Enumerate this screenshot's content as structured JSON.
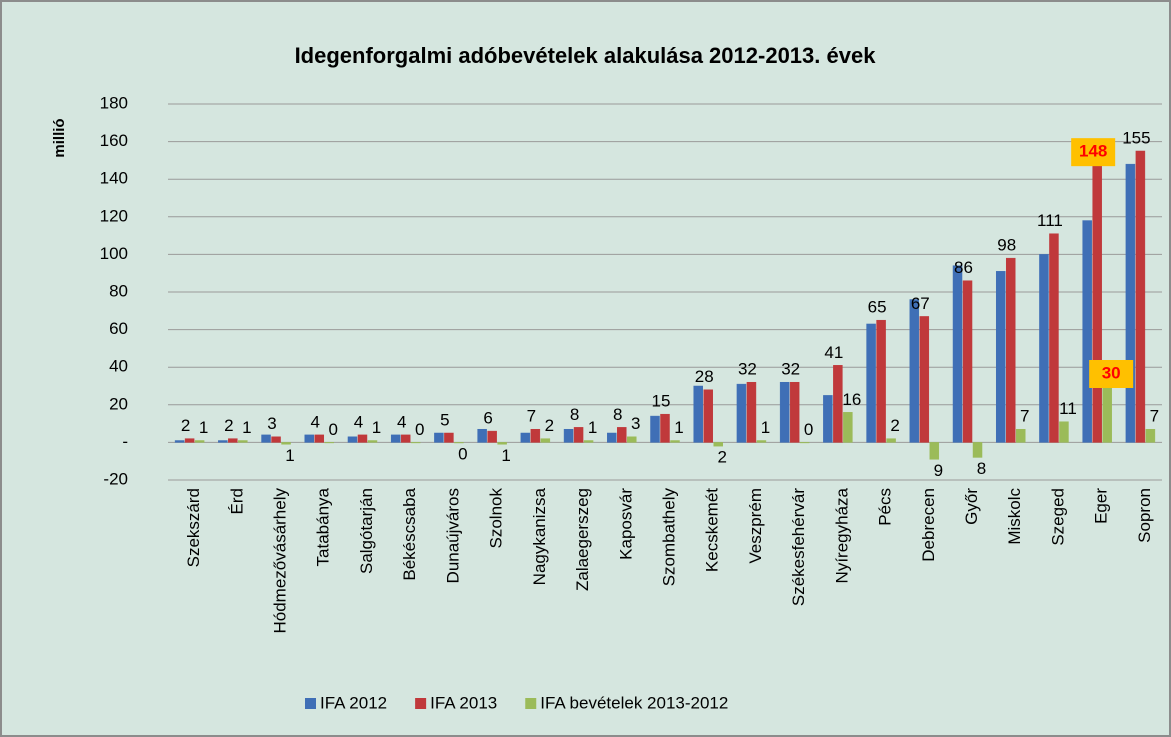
{
  "chart_data": {
    "type": "bar",
    "title": "Idegenforgalmi adóbevételek alakulása 2012-2013. évek",
    "y_label": "millió",
    "categories": [
      "Szekszárd",
      "Érd",
      "Hódmezővásárhely",
      "Tatabánya",
      "Salgótarján",
      "Békéscsaba",
      "Dunaújváros",
      "Szolnok",
      "Nagykanizsa",
      "Zalaegerszeg",
      "Kaposvár",
      "Szombathely",
      "Kecskemét",
      "Veszprém",
      "Székesfehérvár",
      "Nyíregyháza",
      "Pécs",
      "Debrecen",
      "Győr",
      "Miskolc",
      "Szeged",
      "Eger",
      "Sopron"
    ],
    "series": [
      {
        "name": "IFA 2012",
        "color": "#3f6fb6",
        "values": [
          1,
          1,
          4,
          4,
          3,
          4,
          5,
          7,
          5,
          7,
          5,
          14,
          30,
          31,
          32,
          25,
          63,
          76,
          94,
          91,
          100,
          118,
          148
        ]
      },
      {
        "name": "IFA 2013",
        "color": "#c0393b",
        "values": [
          2,
          2,
          3,
          4,
          4,
          4,
          5,
          6,
          7,
          8,
          8,
          15,
          28,
          32,
          32,
          41,
          65,
          67,
          86,
          98,
          111,
          148,
          155
        ],
        "show_labels": true,
        "highlight_index": 21,
        "highlight_color": "#ffc000",
        "highlight_text_color": "#ff0000"
      },
      {
        "name": "IFA bevételek 2013-2012",
        "color": "#9bbb59",
        "values": [
          1,
          1,
          -1,
          0,
          1,
          0,
          -0.3,
          -1,
          2,
          1,
          3,
          1,
          -2,
          1,
          0,
          16,
          2,
          -9,
          -8,
          7,
          11,
          30,
          7
        ],
        "value_labels": [
          "1",
          "1",
          "1",
          "0",
          "1",
          "0",
          "0",
          "1",
          "2",
          "1",
          "3",
          "1",
          "2",
          "1",
          "0",
          "16",
          "2",
          "9",
          "8",
          "7",
          "11",
          "30",
          "7"
        ],
        "show_labels": true,
        "highlight_index": 21,
        "highlight_color": "#ffc000",
        "highlight_text_color": "#ff0000"
      }
    ],
    "ylim": [
      -20,
      180
    ],
    "yticks": [
      {
        "value": -20,
        "label": "-20"
      },
      {
        "value": 0,
        "label": "-"
      },
      20,
      40,
      60,
      80,
      100,
      120,
      140,
      160,
      180
    ],
    "grid": true,
    "legend": "bottom"
  }
}
